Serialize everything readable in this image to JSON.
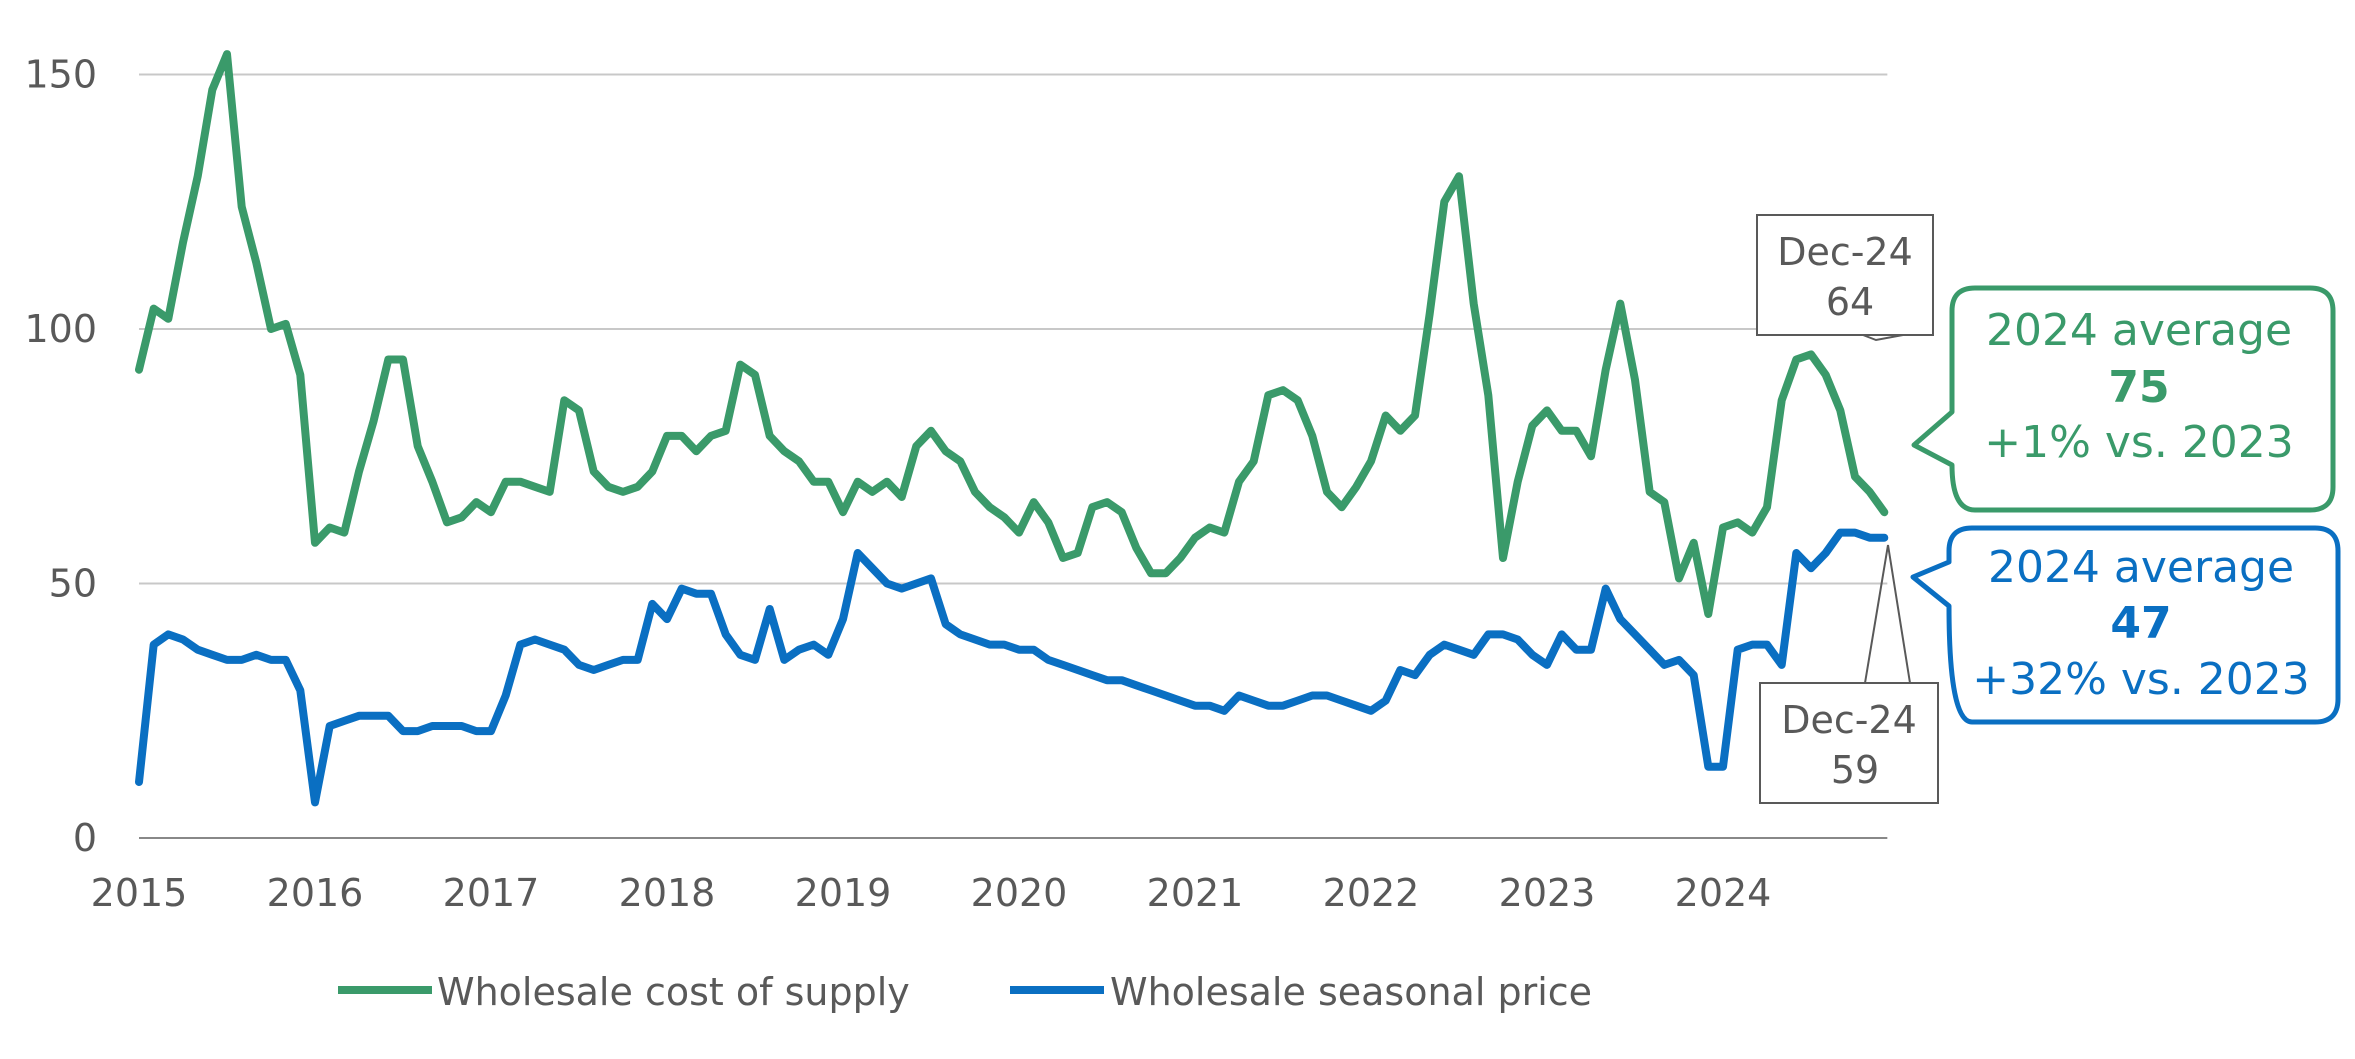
{
  "chart_data": {
    "type": "line",
    "x_start": "2015-01",
    "x_end": "2024-12",
    "x_tick_labels": [
      "2015",
      "2016",
      "2017",
      "2018",
      "2019",
      "2020",
      "2021",
      "2022",
      "2023",
      "2024"
    ],
    "y_ticks": [
      0,
      50,
      100,
      150
    ],
    "ylim": [
      0,
      160
    ],
    "grid": "horizontal",
    "legend_position": "bottom",
    "series": [
      {
        "name": "Wholesale cost of supply",
        "color": "#3a9a6a",
        "values": [
          92,
          104,
          102,
          117,
          130,
          147,
          154,
          124,
          113,
          100,
          101,
          91,
          58,
          61,
          60,
          72,
          82,
          94,
          94,
          77,
          70,
          62,
          63,
          66,
          64,
          70,
          70,
          69,
          68,
          86,
          84,
          72,
          69,
          68,
          69,
          72,
          79,
          79,
          76,
          79,
          80,
          93,
          91,
          79,
          76,
          74,
          70,
          70,
          64,
          70,
          68,
          70,
          67,
          77,
          80,
          76,
          74,
          68,
          65,
          63,
          60,
          66,
          62,
          55,
          56,
          65,
          66,
          64,
          57,
          52,
          52,
          55,
          59,
          61,
          60,
          70,
          74,
          87,
          88,
          86,
          79,
          68,
          65,
          69,
          74,
          83,
          80,
          83,
          103,
          125,
          130,
          105,
          87,
          55,
          70,
          81,
          84,
          80,
          80,
          75,
          92,
          105,
          90,
          68,
          66,
          51,
          58,
          44,
          61,
          62,
          60,
          65,
          86,
          94,
          95,
          91,
          84,
          71,
          68,
          64
        ]
      },
      {
        "name": "Wholesale seasonal price",
        "color": "#0a6fc2",
        "values": [
          11,
          38,
          40,
          39,
          37,
          36,
          35,
          35,
          36,
          35,
          35,
          29,
          7,
          22,
          23,
          24,
          24,
          24,
          21,
          21,
          22,
          22,
          22,
          21,
          21,
          28,
          38,
          39,
          38,
          37,
          34,
          33,
          34,
          35,
          35,
          46,
          43,
          49,
          48,
          48,
          40,
          36,
          35,
          45,
          35,
          37,
          38,
          36,
          43,
          56,
          53,
          50,
          49,
          50,
          51,
          42,
          40,
          39,
          38,
          38,
          37,
          37,
          35,
          34,
          33,
          32,
          31,
          31,
          30,
          29,
          28,
          27,
          26,
          26,
          25,
          28,
          27,
          26,
          26,
          27,
          28,
          28,
          27,
          26,
          25,
          27,
          33,
          32,
          36,
          38,
          37,
          36,
          40,
          40,
          39,
          36,
          34,
          40,
          37,
          37,
          49,
          43,
          40,
          37,
          34,
          35,
          32,
          14,
          14,
          37,
          38,
          38,
          34,
          56,
          53,
          56,
          60,
          60,
          59,
          59
        ]
      }
    ],
    "annotations": [
      {
        "label": "Dec-24",
        "value": "64",
        "series": "Wholesale cost of supply"
      },
      {
        "label": "Dec-24",
        "value": "59",
        "series": "Wholesale seasonal price"
      }
    ],
    "averages": [
      {
        "line1": "2024 average",
        "value": "75",
        "change": "+1% vs. 2023",
        "color": "#3a9a6a"
      },
      {
        "line1": "2024 average",
        "value": "47",
        "change": "+32% vs. 2023",
        "color": "#0a6fc2"
      }
    ]
  }
}
